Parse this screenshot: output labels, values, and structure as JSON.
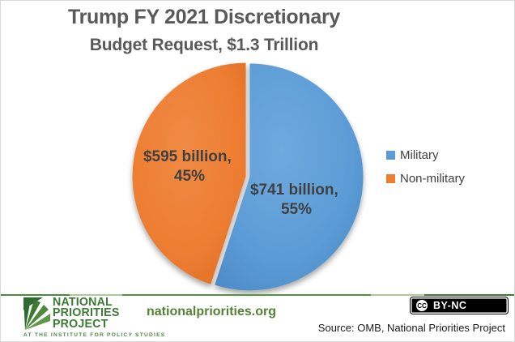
{
  "title": {
    "line1": "Trump FY 2021 Discretionary",
    "line2": "Budget Request, $1.3 Trillion"
  },
  "chart_data": {
    "type": "pie",
    "title": "Trump FY 2021 Discretionary Budget Request, $1.3 Trillion",
    "total_label": "$1.3 Trillion",
    "unit": "USD billions",
    "start_angle": "top",
    "direction": "clockwise",
    "legend_position": "right",
    "slices": [
      {
        "name": "Military",
        "value_usd_billion": 741,
        "percent": 55,
        "color": "#5B9BD5",
        "label_line1": "$741 billion,",
        "label_line2": "55%"
      },
      {
        "name": "Non-military",
        "value_usd_billion": 595,
        "percent": 45,
        "color": "#ED7D31",
        "label_line1": "$595 billion,",
        "label_line2": "45%"
      }
    ]
  },
  "legend": {
    "items": [
      {
        "label": "Military",
        "color": "#5B9BD5"
      },
      {
        "label": "Non-military",
        "color": "#ED7D31"
      }
    ]
  },
  "footer": {
    "logo": {
      "line1": "NATIONAL",
      "line2": "PRIORITIES",
      "line3": "PROJECT",
      "tagline": "AT THE INSTITUTE FOR POLICY STUDIES"
    },
    "website": "nationalpriorities.org",
    "license": {
      "icon": "CC",
      "label": "BY-NC"
    },
    "source": "Source: OMB, National Priorities Project"
  },
  "colors": {
    "military_blue": "#5B9BD5",
    "non_military_orange": "#ED7D31",
    "title_text": "#595959",
    "pie_label_text": "#404040",
    "brand_green_dark": "#3E7A33",
    "brand_green": "#548235"
  }
}
